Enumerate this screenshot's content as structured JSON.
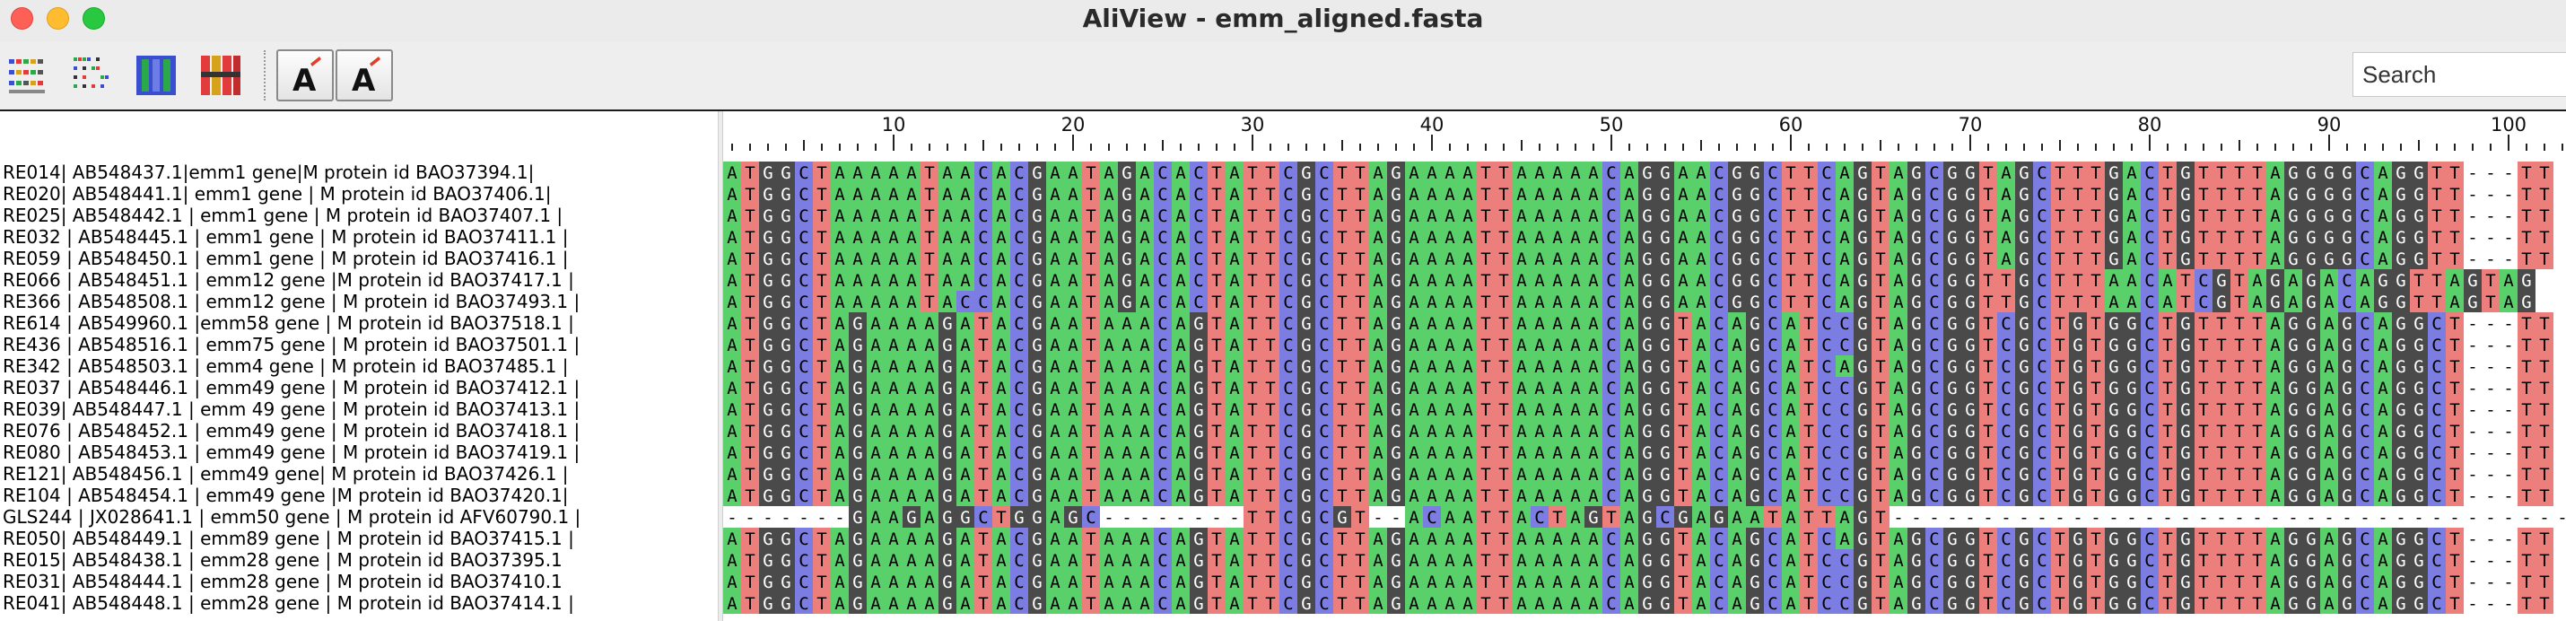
{
  "window": {
    "title": "AliView - emm_aligned.fasta",
    "buttons": [
      "close",
      "minimize",
      "zoom"
    ]
  },
  "toolbar": {
    "icons": [
      "alignment-overview-icon",
      "show-translation-icon",
      "color-scheme-icon",
      "consensus-icon"
    ],
    "font_buttons": [
      "decrease-font-size-icon",
      "increase-font-size-icon"
    ],
    "search_placeholder": "Search"
  },
  "ruler": {
    "labels": [
      "10",
      "20",
      "30",
      "40",
      "50",
      "60",
      "70",
      "80",
      "90",
      "100"
    ]
  },
  "colors": {
    "A": "#5ad06b",
    "T": "#ec7f7c",
    "G": "#4a4a4a",
    "C": "#7b7de2",
    "-": "#ffffff"
  },
  "sequences": [
    {
      "name": "RE014| AB548437.1|emm1 gene|M protein id BAO37394.1|",
      "seq": "ATGGCTAAAAATAACACGAATAGACACTATTCGCTTAGAAAATTAAAAACAGGAACGGCTTCAGTAGCGGTAGCTTTGACTGTTTTAGGGGCAGGTT---TT"
    },
    {
      "name": "RE020| AB548441.1| emm1 gene | M protein id BAO37406.1|",
      "seq": "ATGGCTAAAAATAACACGAATAGACACTATTCGCTTAGAAAATTAAAAACAGGAACGGCTTCAGTAGCGGTAGCTTTGACTGTTTTAGGGGCAGGTT---TT"
    },
    {
      "name": "RE025| AB548442.1 | emm1 gene | M protein id BAO37407.1 |",
      "seq": "ATGGCTAAAAATAACACGAATAGACACTATTCGCTTAGAAAATTAAAAACAGGAACGGCTTCAGTAGCGGTAGCTTTGACTGTTTTAGGGGCAGGTT---TT"
    },
    {
      "name": "RE032 | AB548445.1 | emm1 gene | M protein id BAO37411.1 |",
      "seq": "ATGGCTAAAAATAACACGAATAGACACTATTCGCTTAGAAAATTAAAAACAGGAACGGCTTCAGTAGCGGTAGCTTTGACTGTTTTAGGGGCAGGTT---TT"
    },
    {
      "name": "RE059 | AB548450.1 | emm1 gene | M protein id BAO37416.1 |",
      "seq": "ATGGCTAAAAATAACACGAATAGACACTATTCGCTTAGAAAATTAAAAACAGGAACGGCTTCAGTAGCGGTAGCTTTGACTGTTTTAGGGGCAGGTT---TT"
    },
    {
      "name": "RE066 | AB548451.1 | emm12 gene |M protein id BAO37417.1 |",
      "seq": "ATGGCTAAAAATAACACGAATAGACACTATTCGCTTAGAAAATTAAAAACAGGAACGGCTTCAGTAGCGGTTGCTTTAACATCGTAGAGACAGGTTAGTAG"
    },
    {
      "name": "RE366 | AB548508.1 | emm12 gene | M protein id BAO37493.1 |",
      "seq": "ATGGCTAAAAATACCACGAATAGACACTATTCGCTTAGAAAATTAAAAACAGGAACGGCTTCAGTAGCGGTTGCTTTAACATCGTAGAGACAGGTTAGTAG"
    },
    {
      "name": "RE614 | AB549960.1 |emm58 gene | M protein id BAO37518.1 |",
      "seq": "ATGGCTAGAAAAGATACGAATAAACAGTATTCGCTTAGAAAATTAAAAACAGGTACAGCATCCGTAGCGGTCGCTGTGGCTGTTTTAGGAGCAGGCT---TT"
    },
    {
      "name": "RE436 | AB548516.1 | emm75 gene | M protein id BAO37501.1 |",
      "seq": "ATGGCTAGAAAAGATACGAATAAACAGTATTCGCTTAGAAAATTAAAAACAGGTACAGCATCCGTAGCGGTCGCTGTGGCTGTTTTAGGAGCAGGCT---TT"
    },
    {
      "name": "RE342 | AB548503.1 | emm4 gene | M protein id BAO37485.1 |",
      "seq": "ATGGCTAGAAAAGATACGAATAAACAGTATTCGCTTAGAAAATTAAAAACAGGTACAGCATCAGTAGCGGTCGCTGTGGCTGTTTTAGGAGCAGGCT---TT"
    },
    {
      "name": "RE037 | AB548446.1 | emm49 gene | M protein id BAO37412.1 |",
      "seq": "ATGGCTAGAAAAGATACGAATAAACAGTATTCGCTTAGAAAATTAAAAACAGGTACAGCATCCGTAGCGGTCGCTGTGGCTGTTTTAGGAGCAGGCT---TT"
    },
    {
      "name": "RE039| AB548447.1 | emm 49 gene | M protein id BAO37413.1 |",
      "seq": "ATGGCTAGAAAAGATACGAATAAACAGTATTCGCTTAGAAAATTAAAAACAGGTACAGCATCCGTAGCGGTCGCTGTGGCTGTTTTAGGAGCAGGCT---TT"
    },
    {
      "name": "RE076 | AB548452.1 | emm49 gene | M protein id BAO37418.1 |",
      "seq": "ATGGCTAGAAAAGATACGAATAAACAGTATTCGCTTAGAAAATTAAAAACAGGTACAGCATCCGTAGCGGTCGCTGTGGCTGTTTTAGGAGCAGGCT---TT"
    },
    {
      "name": "RE080 | AB548453.1 | emm49 gene | M protein id BAO37419.1 |",
      "seq": "ATGGCTAGAAAAGATACGAATAAACAGTATTCGCTTAGAAAATTAAAAACAGGTACAGCATCCGTAGCGGTCGCTGTGGCTGTTTTAGGAGCAGGCT---TT"
    },
    {
      "name": "RE121| AB548456.1 | emm49 gene| M protein id BAO37426.1 |",
      "seq": "ATGGCTAGAAAAGATACGAATAAACAGTATTCGCTTAGAAAATTAAAAACAGGTACAGCATCCGTAGCGGTCGCTGTGGCTGTTTTAGGAGCAGGCT---TT"
    },
    {
      "name": "RE104 | AB548454.1 | emm49 gene |M protein id BAO37420.1|",
      "seq": "ATGGCTAGAAAAGATACGAATAAACAGTATTCGCTTAGAAAATTAAAAACAGGTACAGCATCCGTAGCGGTCGCTGTGGCTGTTTTAGGAGCAGGCT---TT"
    },
    {
      "name": "GLS244 | JX028641.1 | emm50 gene | M protein id AFV60790.1 |",
      "seq": "-------GAAGAGGCTGGAGC--------TTCGCGT--ACAATTACTAGTAGCGAGAATATTAGT----------------------------------------"
    },
    {
      "name": "RE050| AB548449.1 | emm89 gene | M protein id BAO37415.1 |",
      "seq": "ATGGCTAGAAAAGATACGAATAAACAGTATTCGCTTAGAAAATTAAAAACAGGTACAGCATCAGTAGCGGTCGCTGTGGCTGTTTTAGGAGCAGGCT---TT"
    },
    {
      "name": "RE015| AB548438.1 | emm28 gene | M protein id BAO37395.1",
      "seq": "ATGGCTAGAAAAGATACGAATAAACAGTATTCGCTTAGAAAATTAAAAACAGGTACAGCATCCGTAGCGGTCGCTGTGGCTGTTTTAGGAGCAGGCT---TT"
    },
    {
      "name": "RE031| AB548444.1 | emm28 gene | M protein id BAO37410.1",
      "seq": "ATGGCTAGAAAAGATACGAATAAACAGTATTCGCTTAGAAAATTAAAAACAGGTACAGCATCCGTAGCGGTCGCTGTGGCTGTTTTAGGAGCAGGCT---TT"
    },
    {
      "name": "RE041| AB548448.1 | emm28 gene | M protein id BAO37414.1 |",
      "seq": "ATGGCTAGAAAAGATACGAATAAACAGTATTCGCTTAGAAAATTAAAAACAGGTACAGCATCCGTAGCGGTCGCTGTGGCTGTTTTAGGAGCAGGCT---TT"
    }
  ]
}
